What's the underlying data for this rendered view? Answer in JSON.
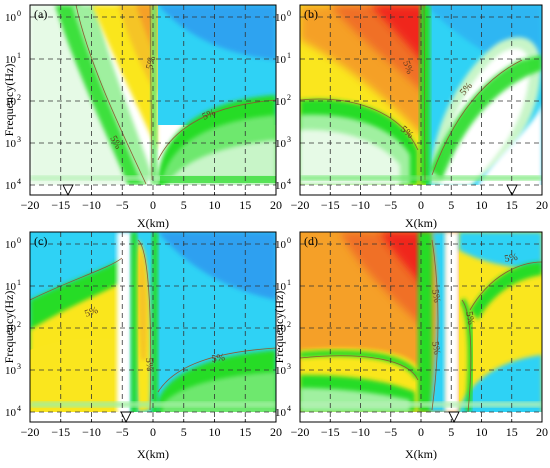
{
  "figure": {
    "ylabel": "Frequency(Hz)",
    "xlabel": "X(km)"
  },
  "chart_data": [
    {
      "type": "heatmap",
      "panel_label": "(a)",
      "xlabel": "X(km)",
      "ylabel": "Frequency(Hz)",
      "xlim": [
        -20,
        20
      ],
      "x_ticks": [
        -20,
        -15,
        -10,
        -5,
        0,
        5,
        10,
        15,
        20
      ],
      "y_scale": "log",
      "ylim": [
        1,
        10000
      ],
      "y_ticks": [
        {
          "base": "10",
          "exp": "0"
        },
        {
          "base": "10",
          "exp": "1"
        },
        {
          "base": "10",
          "exp": "2"
        },
        {
          "base": "10",
          "exp": "3"
        },
        {
          "base": "10",
          "exp": "4"
        }
      ],
      "grid": true,
      "contour_labels": [
        "5%",
        "5%",
        "5%"
      ],
      "station_x": -15
    },
    {
      "type": "heatmap",
      "panel_label": "(b)",
      "xlabel": "X(km)",
      "ylabel": "Frequency(Hz)",
      "xlim": [
        -20,
        20
      ],
      "x_ticks": [
        -20,
        -15,
        -10,
        -5,
        0,
        5,
        10,
        15,
        20
      ],
      "y_scale": "log",
      "ylim": [
        1,
        10000
      ],
      "y_ticks": [
        {
          "base": "10",
          "exp": "0"
        },
        {
          "base": "10",
          "exp": "1"
        },
        {
          "base": "10",
          "exp": "2"
        },
        {
          "base": "10",
          "exp": "3"
        },
        {
          "base": "10",
          "exp": "4"
        }
      ],
      "grid": true,
      "contour_labels": [
        "5%",
        "5%",
        "5%"
      ],
      "station_x": 15
    },
    {
      "type": "heatmap",
      "panel_label": "(c)",
      "xlabel": "X(km)",
      "ylabel": "Frequency(Hz)",
      "xlim": [
        -20,
        20
      ],
      "x_ticks": [
        -20,
        -15,
        -10,
        -5,
        0,
        5,
        10,
        15,
        20
      ],
      "y_scale": "log",
      "ylim": [
        1,
        10000
      ],
      "y_ticks": [
        {
          "base": "10",
          "exp": "0"
        },
        {
          "base": "10",
          "exp": "1"
        },
        {
          "base": "10",
          "exp": "2"
        },
        {
          "base": "10",
          "exp": "3"
        },
        {
          "base": "10",
          "exp": "4"
        }
      ],
      "grid": true,
      "contour_labels": [
        "5%",
        "5%",
        "5%"
      ],
      "station_x": -5
    },
    {
      "type": "heatmap",
      "panel_label": "(d)",
      "xlabel": "X(km)",
      "ylabel": "Frequency(Hz)",
      "xlim": [
        -20,
        20
      ],
      "x_ticks": [
        -20,
        -15,
        -10,
        -5,
        0,
        5,
        10,
        15,
        20
      ],
      "y_scale": "log",
      "ylim": [
        1,
        10000
      ],
      "y_ticks": [
        {
          "base": "10",
          "exp": "0"
        },
        {
          "base": "10",
          "exp": "1"
        },
        {
          "base": "10",
          "exp": "2"
        },
        {
          "base": "10",
          "exp": "3"
        },
        {
          "base": "10",
          "exp": "4"
        }
      ],
      "grid": true,
      "contour_labels": [
        "5%",
        "5%",
        "5%",
        "5%"
      ],
      "station_x": 5
    }
  ],
  "colors": {
    "red": "#f0281e",
    "orange": "#f5a028",
    "yellow": "#fae61e",
    "green": "#28dc28",
    "light_green": "#a0f0a0",
    "white": "#ffffff",
    "cyan": "#2fd2f5",
    "blue": "#2d9bf0",
    "contour": "#8c5a32",
    "grid": "#333333"
  }
}
